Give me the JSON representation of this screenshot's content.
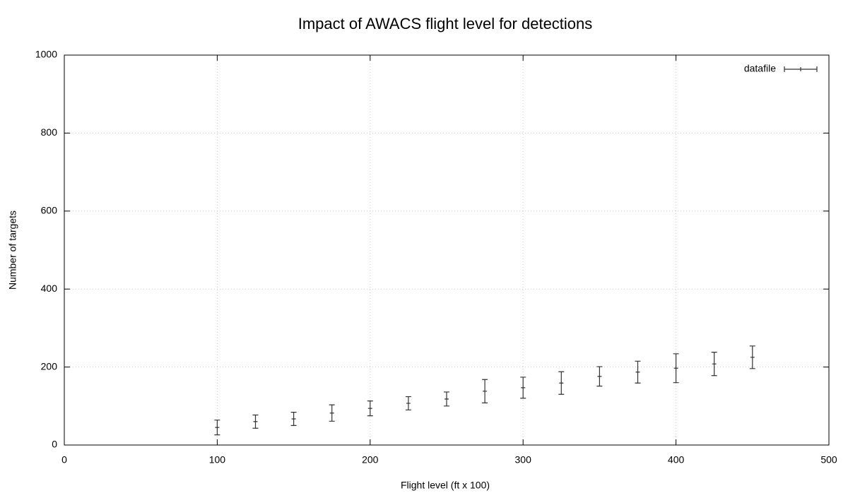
{
  "chart_data": {
    "type": "errorbar",
    "title": "Impact of AWACS flight level for detections",
    "xlabel": "Flight level (ft x 100)",
    "ylabel": "Number of targets",
    "x": [
      100,
      125,
      150,
      175,
      200,
      225,
      250,
      275,
      300,
      325,
      350,
      375,
      400,
      425,
      450
    ],
    "series": [
      {
        "name": "datafile",
        "color": "#333333",
        "values": [
          45,
          60,
          67,
          82,
          94,
          107,
          118,
          138,
          147,
          159,
          176,
          187,
          197,
          208,
          225
        ],
        "errors": [
          19,
          17,
          17,
          21,
          19,
          17,
          18,
          30,
          27,
          29,
          25,
          28,
          37,
          30,
          29
        ]
      }
    ],
    "xlim": [
      0,
      500
    ],
    "xticks": [
      0,
      100,
      200,
      300,
      400,
      500
    ],
    "ylim": [
      0,
      1000
    ],
    "yticks": [
      0,
      200,
      400,
      600,
      800,
      1000
    ],
    "grid": true,
    "legend": "top-right"
  }
}
